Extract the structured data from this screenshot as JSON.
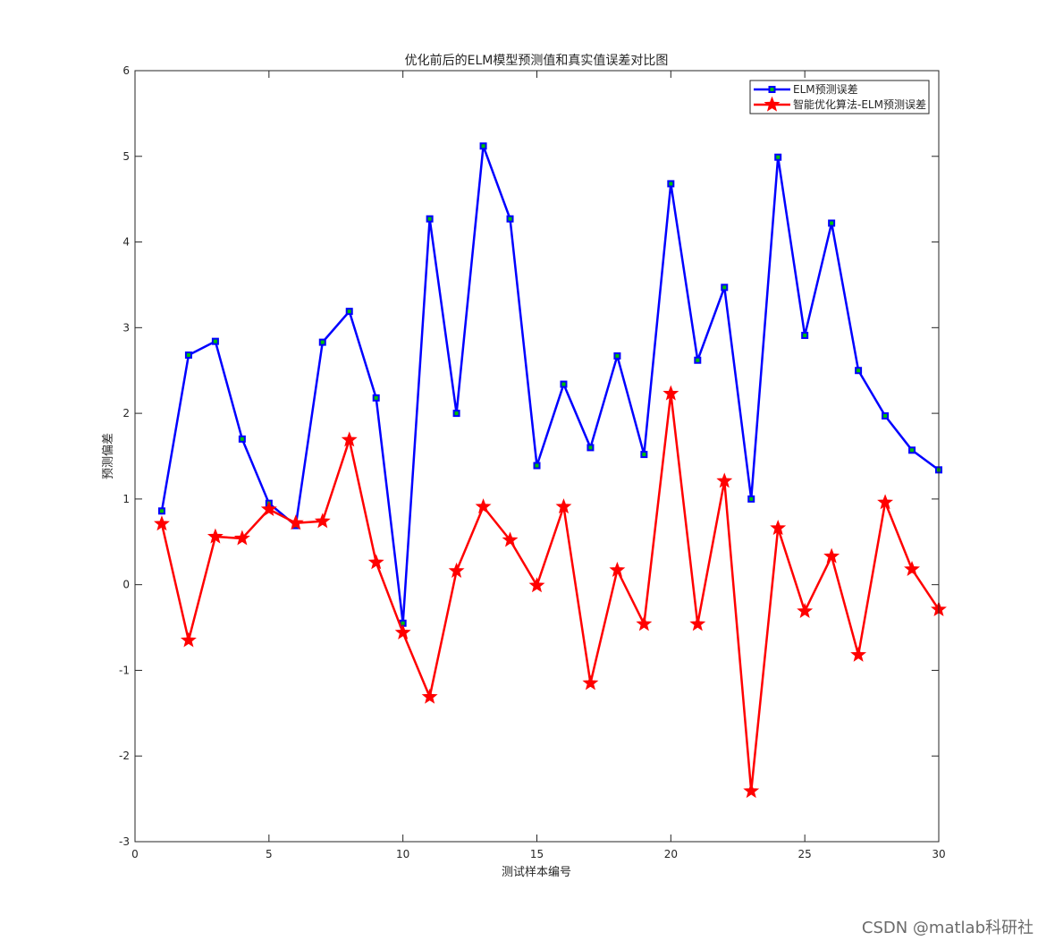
{
  "chart_data": {
    "type": "line",
    "title": "优化前后的ELM模型预测值和真实值误差对比图",
    "xlabel": "测试样本编号",
    "ylabel": "预测偏差",
    "xlim": [
      0,
      30
    ],
    "ylim": [
      -3,
      6
    ],
    "xticks": [
      0,
      5,
      10,
      15,
      20,
      25,
      30
    ],
    "yticks": [
      -3,
      -2,
      -1,
      0,
      1,
      2,
      3,
      4,
      5,
      6
    ],
    "grid": false,
    "legend_position": "top-right",
    "x": [
      1,
      2,
      3,
      4,
      5,
      6,
      7,
      8,
      9,
      10,
      11,
      12,
      13,
      14,
      15,
      16,
      17,
      18,
      19,
      20,
      21,
      22,
      23,
      24,
      25,
      26,
      27,
      28,
      29,
      30
    ],
    "series": [
      {
        "name": "ELM预测误差",
        "color": "#0000ff",
        "marker": "square",
        "marker_fill": "#00c000",
        "values": [
          0.86,
          2.68,
          2.84,
          1.7,
          0.95,
          0.69,
          2.83,
          3.19,
          2.18,
          -0.45,
          4.27,
          2.0,
          5.12,
          4.27,
          1.39,
          2.34,
          1.6,
          2.67,
          1.52,
          4.68,
          2.62,
          3.47,
          1.0,
          4.99,
          2.91,
          4.22,
          2.5,
          1.97,
          1.57,
          1.34
        ]
      },
      {
        "name": "智能优化算法-ELM预测误差",
        "color": "#ff0000",
        "marker": "star",
        "values": [
          0.71,
          -0.65,
          0.56,
          0.54,
          0.88,
          0.72,
          0.74,
          1.69,
          0.26,
          -0.56,
          -1.31,
          0.16,
          0.91,
          0.52,
          -0.01,
          0.91,
          -1.15,
          0.17,
          -0.46,
          2.23,
          -0.46,
          1.21,
          -2.41,
          0.66,
          -0.31,
          0.33,
          -0.82,
          0.96,
          0.18,
          -0.29
        ]
      }
    ]
  },
  "watermark": "CSDN @matlab科研社"
}
